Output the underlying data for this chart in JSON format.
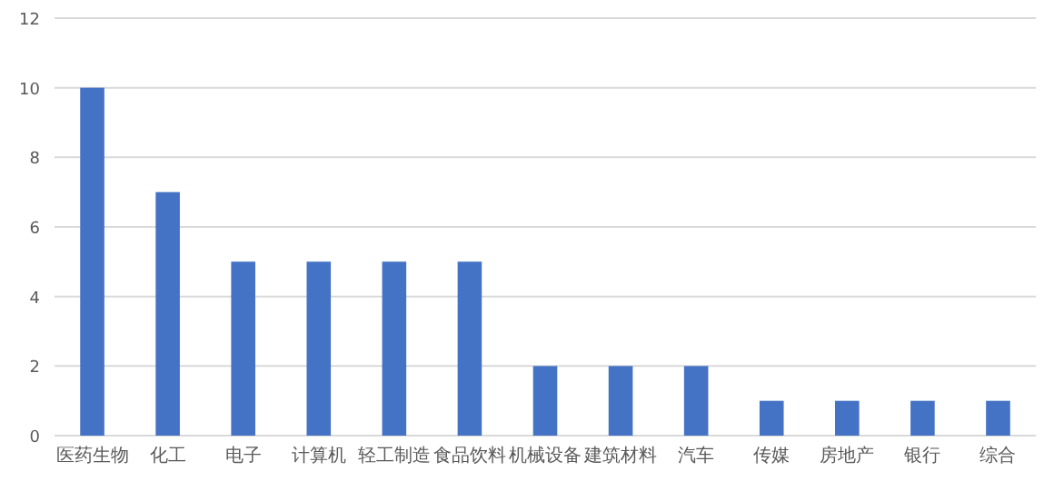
{
  "chart_data": {
    "type": "bar",
    "categories": [
      "医药生物",
      "化工",
      "电子",
      "计算机",
      "轻工制造",
      "食品饮料",
      "机械设备",
      "建筑材料",
      "汽车",
      "传媒",
      "房地产",
      "银行",
      "综合"
    ],
    "values": [
      10,
      7,
      5,
      5,
      5,
      5,
      2,
      2,
      2,
      1,
      1,
      1,
      1
    ],
    "color": "#4472c4",
    "ylim": [
      0,
      12
    ],
    "yticks": [
      0,
      2,
      4,
      6,
      8,
      10,
      12
    ],
    "grid": "y"
  }
}
